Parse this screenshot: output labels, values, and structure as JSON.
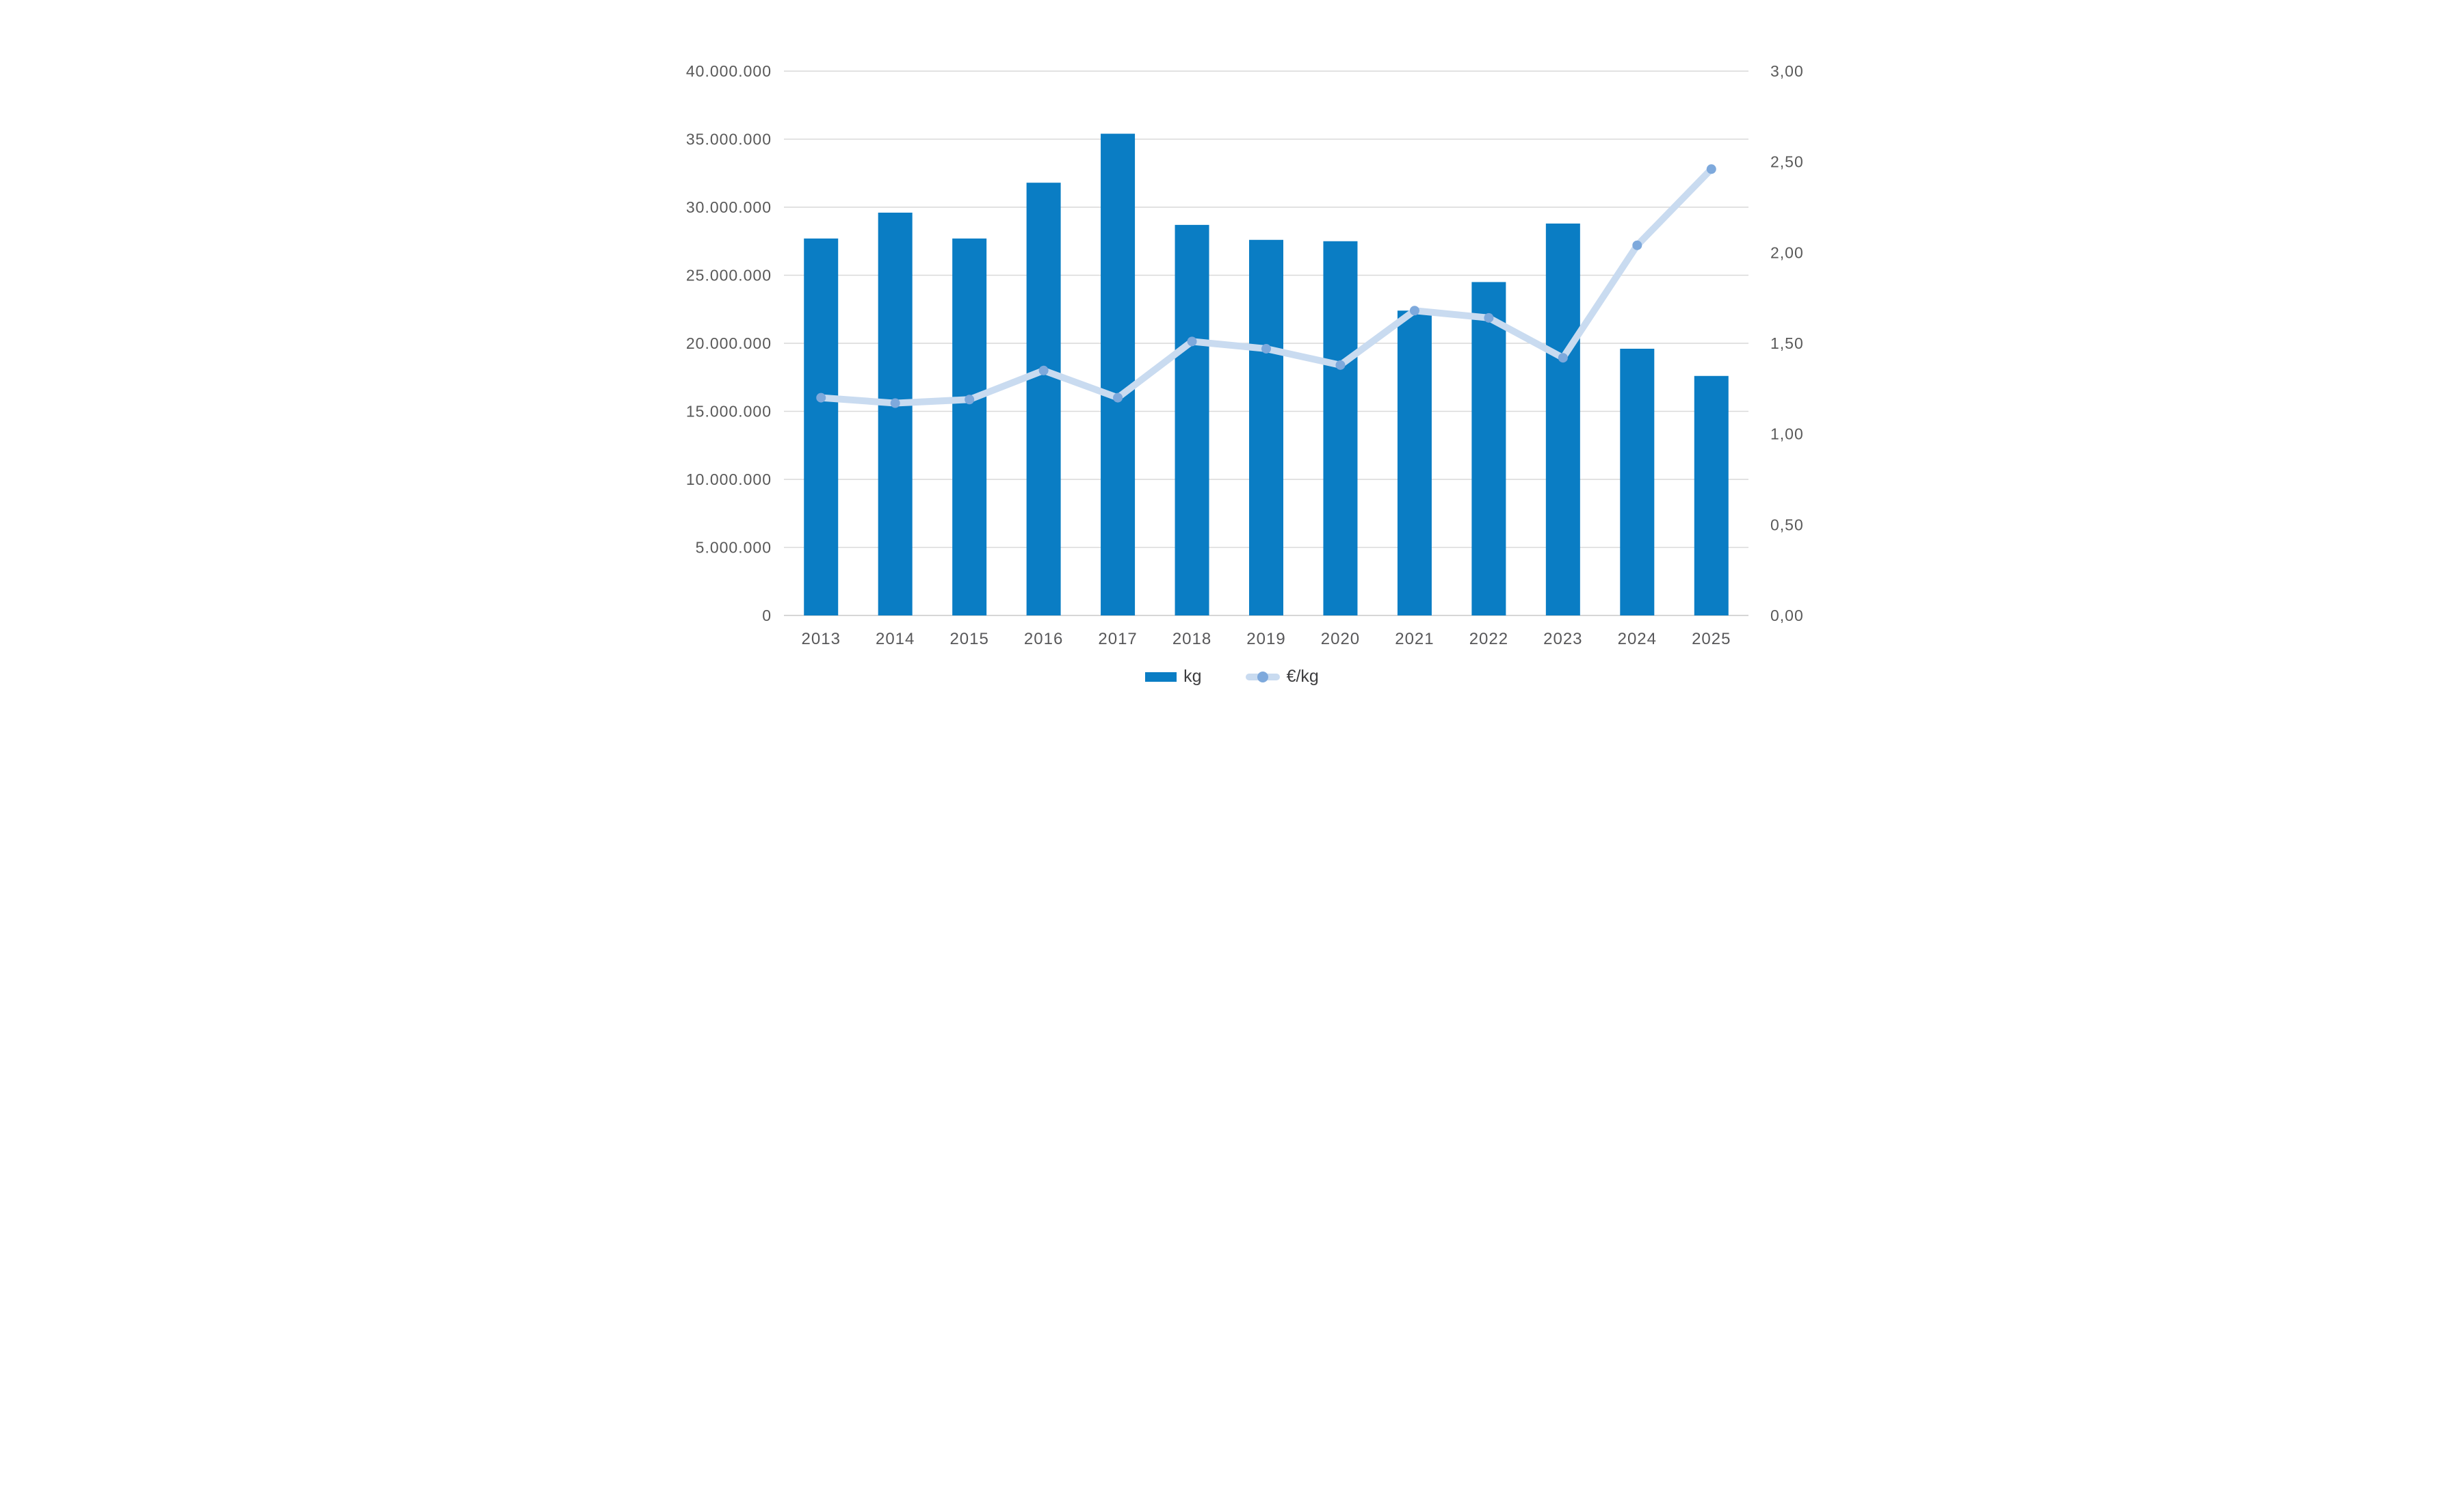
{
  "chart_data": {
    "type": "bar+line combo",
    "categories": [
      "2013",
      "2014",
      "2015",
      "2016",
      "2017",
      "2018",
      "2019",
      "2020",
      "2021",
      "2022",
      "2023",
      "2024",
      "2025"
    ],
    "series": [
      {
        "name": "kg",
        "type": "bar",
        "axis": "left",
        "values": [
          27700000,
          29600000,
          27700000,
          31800000,
          35400000,
          28700000,
          27600000,
          27500000,
          22400000,
          24500000,
          28800000,
          19600000,
          17600000
        ]
      },
      {
        "name": "€/kg",
        "type": "line",
        "axis": "right",
        "values": [
          1.2,
          1.17,
          1.19,
          1.35,
          1.2,
          1.51,
          1.47,
          1.38,
          1.68,
          1.64,
          1.42,
          2.04,
          2.46
        ]
      }
    ],
    "left_axis": {
      "min": 0,
      "max": 40000000,
      "step": 5000000,
      "tick_labels_top_to_bottom": [
        "40.000.000",
        "35.000.000",
        "30.000.000",
        "25.000.000",
        "20.000.000",
        "15.000.000",
        "10.000.000",
        "5.000.000",
        "0"
      ]
    },
    "right_axis": {
      "min": 0,
      "max": 3,
      "step": 0.5,
      "tick_labels_top_to_bottom": [
        "3,00",
        "2,50",
        "2,00",
        "1,50",
        "1,00",
        "0,50",
        "0,00"
      ]
    },
    "grid": true,
    "legend_position": "bottom",
    "title": ""
  },
  "legend": {
    "kg_label": "kg",
    "eur_label": "€/kg"
  },
  "colors": {
    "bar": "#0a7dc4",
    "line": "#c9dbf0",
    "marker": "#7ea9dc",
    "gridline": "#d9d9d9",
    "baseline": "#c9c9c9",
    "axis_text": "#595959",
    "category_text": "#58585a",
    "legend_text": "#3d3d3f",
    "background": "#ffffff"
  }
}
